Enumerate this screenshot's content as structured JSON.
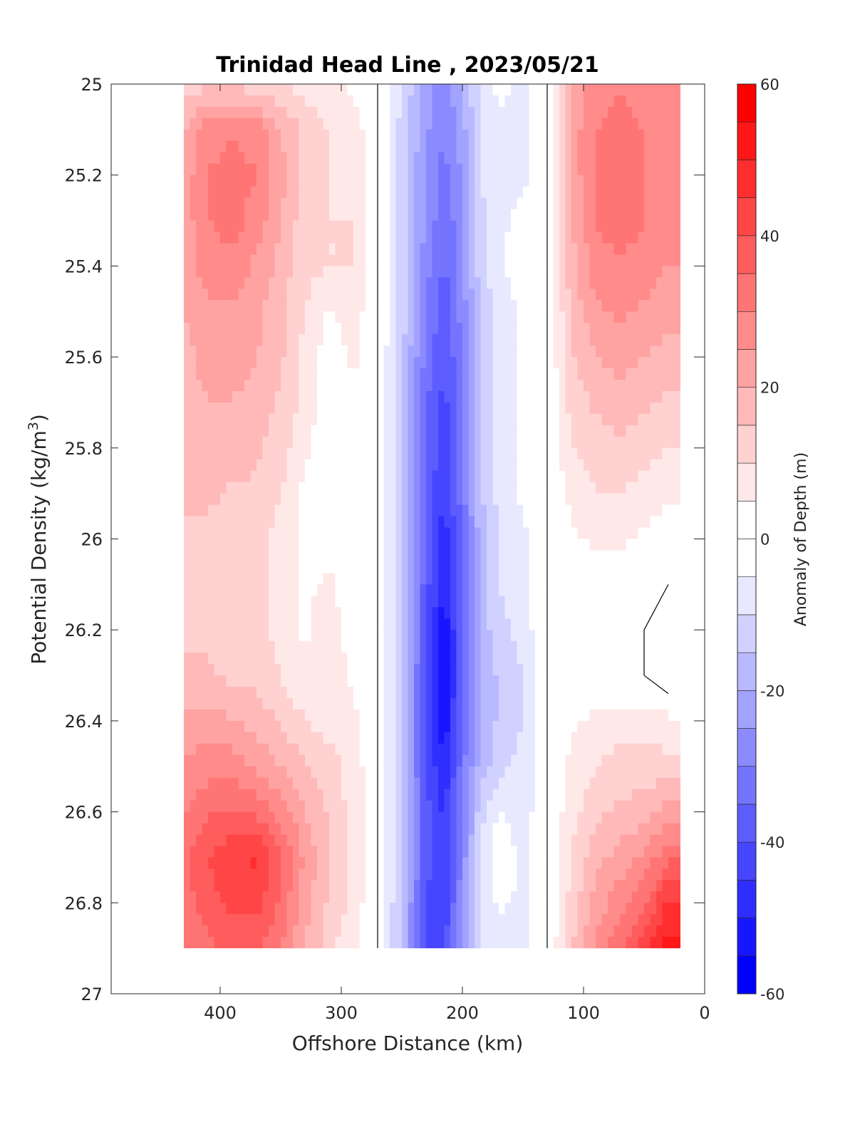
{
  "chart_data": {
    "type": "heatmap",
    "title": "Trinidad Head Line , 2023/05/21",
    "xlabel": "Offshore Distance (km)",
    "ylabel": "Potential Density (kg/m",
    "ylabel_sup": "3",
    "ylabel_close": ")",
    "colorbar_label": "Anomaly of Depth (m)",
    "xlim": [
      490,
      0
    ],
    "ylim": [
      25,
      27
    ],
    "x_ticks": [
      {
        "value": 400,
        "label": "400"
      },
      {
        "value": 300,
        "label": "300"
      },
      {
        "value": 200,
        "label": "200"
      },
      {
        "value": 100,
        "label": "100"
      },
      {
        "value": 0,
        "label": "0"
      }
    ],
    "y_ticks": [
      {
        "value": 25,
        "label": "25"
      },
      {
        "value": 25.2,
        "label": "25.2"
      },
      {
        "value": 25.4,
        "label": "25.4"
      },
      {
        "value": 25.6,
        "label": "25.6"
      },
      {
        "value": 25.8,
        "label": "25.8"
      },
      {
        "value": 26,
        "label": "26"
      },
      {
        "value": 26.2,
        "label": "26.2"
      },
      {
        "value": 26.4,
        "label": "26.4"
      },
      {
        "value": 26.6,
        "label": "26.6"
      },
      {
        "value": 26.8,
        "label": "26.8"
      },
      {
        "value": 27,
        "label": "27"
      }
    ],
    "colorbar": {
      "range": [
        -60,
        60
      ],
      "step": 5,
      "ticks": [
        {
          "value": 60,
          "label": "60"
        },
        {
          "value": 40,
          "label": "40"
        },
        {
          "value": 20,
          "label": "20"
        },
        {
          "value": 0,
          "label": "0"
        },
        {
          "value": -20,
          "label": "-20"
        },
        {
          "value": -40,
          "label": "-40"
        },
        {
          "value": -60,
          "label": "-60"
        }
      ],
      "negative_color": "#0000ff",
      "positive_color": "#ff0000",
      "neutral_color": "#ffffff"
    },
    "data_extent": {
      "x": [
        430,
        20
      ],
      "y": [
        25,
        26.9
      ]
    },
    "x": [
      430,
      410,
      390,
      370,
      350,
      330,
      310,
      290,
      270,
      250,
      230,
      215,
      200,
      185,
      170,
      150,
      130,
      110,
      90,
      70,
      50,
      30
    ],
    "y": [
      25.0,
      25.1,
      25.2,
      25.3,
      25.4,
      25.5,
      25.6,
      25.7,
      25.8,
      25.9,
      26.0,
      26.1,
      26.2,
      26.3,
      26.4,
      26.5,
      26.6,
      26.7,
      26.8,
      26.9
    ],
    "z": [
      [
        12,
        14,
        14,
        12,
        10,
        8,
        6,
        4,
        0,
        -10,
        -22,
        -28,
        -20,
        -8,
        -4,
        -6,
        0,
        20,
        28,
        30,
        28,
        25
      ],
      [
        20,
        28,
        30,
        28,
        20,
        14,
        10,
        8,
        0,
        -12,
        -24,
        -30,
        -22,
        -10,
        -6,
        -8,
        0,
        22,
        30,
        32,
        30,
        25
      ],
      [
        22,
        30,
        32,
        30,
        22,
        14,
        10,
        8,
        0,
        -12,
        -26,
        -32,
        -24,
        -10,
        -5,
        -6,
        0,
        22,
        30,
        32,
        30,
        26
      ],
      [
        22,
        30,
        32,
        28,
        20,
        12,
        10,
        10,
        0,
        -12,
        -26,
        -34,
        -26,
        -12,
        -6,
        -4,
        0,
        20,
        30,
        32,
        30,
        26
      ],
      [
        22,
        28,
        28,
        24,
        18,
        12,
        10,
        10,
        0,
        -12,
        -28,
        -36,
        -26,
        -12,
        -6,
        -2,
        0,
        18,
        28,
        30,
        28,
        25
      ],
      [
        20,
        24,
        24,
        22,
        16,
        10,
        4,
        8,
        0,
        -12,
        -30,
        -38,
        -28,
        -14,
        -8,
        -4,
        0,
        16,
        24,
        26,
        24,
        22
      ],
      [
        18,
        22,
        22,
        20,
        16,
        8,
        2,
        6,
        0,
        -14,
        -32,
        -40,
        -30,
        -16,
        -8,
        -4,
        0,
        14,
        20,
        22,
        20,
        18
      ],
      [
        18,
        20,
        20,
        18,
        14,
        8,
        2,
        4,
        0,
        -14,
        -34,
        -42,
        -30,
        -16,
        -8,
        -4,
        0,
        12,
        16,
        18,
        16,
        14
      ],
      [
        18,
        20,
        18,
        16,
        12,
        6,
        2,
        4,
        0,
        -14,
        -34,
        -44,
        -32,
        -16,
        -8,
        -4,
        0,
        10,
        12,
        14,
        12,
        10
      ],
      [
        16,
        16,
        14,
        14,
        10,
        4,
        2,
        4,
        0,
        -14,
        -36,
        -46,
        -32,
        -16,
        -8,
        -4,
        0,
        6,
        10,
        10,
        8,
        6
      ],
      [
        14,
        14,
        12,
        12,
        8,
        4,
        2,
        2,
        0,
        -14,
        -36,
        -48,
        -34,
        -18,
        -10,
        -6,
        0,
        4,
        6,
        6,
        4,
        2
      ],
      [
        14,
        14,
        12,
        12,
        8,
        4,
        6,
        2,
        0,
        -14,
        -38,
        -50,
        -34,
        -18,
        -10,
        -6,
        0,
        2,
        2,
        2,
        2,
        0
      ],
      [
        14,
        14,
        12,
        12,
        8,
        4,
        8,
        2,
        0,
        -14,
        -38,
        -54,
        -36,
        -18,
        -12,
        -8,
        0,
        2,
        0,
        0,
        0,
        -4
      ],
      [
        16,
        16,
        14,
        14,
        10,
        6,
        8,
        4,
        0,
        -14,
        -40,
        -56,
        -36,
        -20,
        -14,
        -10,
        0,
        2,
        0,
        0,
        0,
        -4
      ],
      [
        22,
        22,
        20,
        18,
        14,
        10,
        8,
        6,
        0,
        -14,
        -40,
        -54,
        -34,
        -20,
        -14,
        -10,
        0,
        4,
        6,
        8,
        8,
        6
      ],
      [
        26,
        28,
        28,
        24,
        20,
        16,
        12,
        8,
        0,
        -14,
        -40,
        -50,
        -32,
        -18,
        -12,
        -8,
        0,
        6,
        10,
        12,
        12,
        12
      ],
      [
        30,
        34,
        36,
        34,
        28,
        20,
        14,
        8,
        0,
        -14,
        -38,
        -46,
        -30,
        -12,
        -4,
        -8,
        0,
        8,
        14,
        16,
        18,
        22
      ],
      [
        34,
        40,
        44,
        46,
        36,
        24,
        16,
        8,
        0,
        -14,
        -38,
        -44,
        -28,
        -10,
        -2,
        -6,
        0,
        10,
        18,
        22,
        26,
        34
      ],
      [
        32,
        38,
        42,
        42,
        34,
        22,
        14,
        8,
        0,
        -16,
        -40,
        -44,
        -26,
        -10,
        -4,
        -6,
        0,
        12,
        22,
        28,
        34,
        46
      ],
      [
        30,
        34,
        36,
        36,
        30,
        20,
        12,
        6,
        0,
        -16,
        -40,
        -42,
        -24,
        -10,
        -8,
        -8,
        0,
        14,
        26,
        34,
        44,
        52
      ]
    ]
  }
}
